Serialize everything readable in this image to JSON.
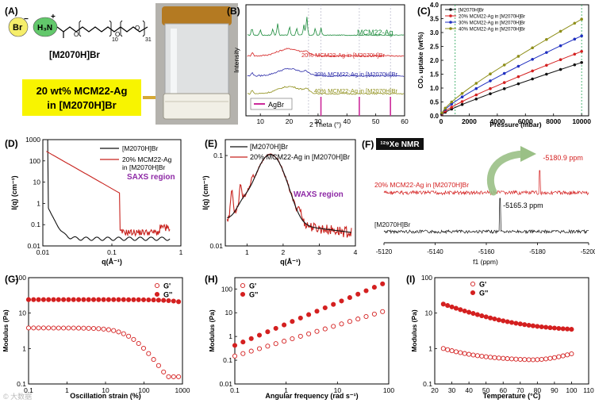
{
  "panels": {
    "A": {
      "letter": "(A)",
      "anion": "Br",
      "cation": "H₃N",
      "sub1": "10",
      "sub2": "31",
      "compound": "[M2070H]Br",
      "callout_line1": "20 wt% MCM22-Ag",
      "callout_line2": "in [M2070H]Br",
      "colors": {
        "anion_fill": "#f6ee6a",
        "cation_fill": "#62c86b",
        "callout_fill": "#f8f400",
        "arrow": "#d6a935"
      }
    },
    "B": {
      "letter": "(B)"
    },
    "C": {
      "letter": "(C)"
    },
    "D": {
      "letter": "(D)"
    },
    "E": {
      "letter": "(E)"
    },
    "F": {
      "letter": "(F)"
    },
    "G": {
      "letter": "(G)"
    },
    "H": {
      "letter": "(H)"
    },
    "I": {
      "letter": "(I)"
    }
  },
  "watermark": "© 大数据",
  "chart_data": [
    {
      "id": "B",
      "type": "line",
      "title": "",
      "xlabel": "2 Theta (°)",
      "ylabel": "Intensity",
      "xlim": [
        5,
        60
      ],
      "xticks": [
        10,
        20,
        30,
        40,
        50,
        60
      ],
      "series": [
        {
          "name": "MCM22-Ag",
          "color": "#1a8a3a",
          "offset": 3.4
        },
        {
          "name": "20% MCM22-Ag in [M2070H]Br",
          "color": "#d42020",
          "offset": 2.45
        },
        {
          "name": "30% MCM22-Ag in [M2070H]Br",
          "color": "#2a2aa8",
          "offset": 1.55
        },
        {
          "name": "40% MCM22-Ag in [M2070H]Br",
          "color": "#8e8e18",
          "offset": 0.75
        }
      ],
      "reference": {
        "name": "AgBr",
        "color": "#cc2a9a",
        "peaks": [
          31,
          44.3,
          55.1
        ],
        "guides": [
          26.7,
          31,
          44.3,
          55.1
        ]
      }
    },
    {
      "id": "C",
      "type": "line",
      "xlabel": "Pressure (mbar)",
      "ylabel": "CO₂ uptake (wt%)",
      "xlim": [
        0,
        10500
      ],
      "ylim": [
        0,
        4.0
      ],
      "xticks": [
        0,
        2000,
        4000,
        6000,
        8000,
        10000
      ],
      "yticks": [
        0,
        0.5,
        1.0,
        1.5,
        2.0,
        2.5,
        3.0,
        3.5,
        4.0
      ],
      "guides": [
        1000,
        10000
      ],
      "series": [
        {
          "name": "[M2070H]Br",
          "color": "#111111",
          "end": 1.92,
          "k": 0.16
        },
        {
          "name": "20% MCM22-Ag in [M2070H]Br",
          "color": "#d42020",
          "end": 2.32,
          "k": 0.22
        },
        {
          "name": "30% MCM22-Ag in [M2070H]Br",
          "color": "#1f2fc0",
          "end": 2.88,
          "k": 0.33
        },
        {
          "name": "40% MCM22-Ag in [M2070H]Br",
          "color": "#8e8e18",
          "end": 3.48,
          "k": 0.38
        }
      ]
    },
    {
      "id": "D",
      "type": "line",
      "xlabel": "q(Å⁻¹)",
      "ylabel": "I(q) (cm⁻¹)",
      "xlim": [
        0.01,
        1
      ],
      "ylim": [
        0.01,
        1000
      ],
      "xscale": "log",
      "yscale": "log",
      "xticks": [
        0.01,
        0.1,
        1
      ],
      "yticks": [
        0.01,
        0.1,
        1,
        10,
        100,
        1000
      ],
      "annotation": "SAXS region",
      "series": [
        {
          "name": "[M2070H]Br",
          "color": "#111111"
        },
        {
          "name": "20% MCM22-Ag in [M2070H]Br",
          "color": "#c8231e"
        }
      ]
    },
    {
      "id": "E",
      "type": "line",
      "xlabel": "q(Å⁻¹)",
      "ylabel": "I(q) (cm⁻¹)",
      "xlim": [
        0.4,
        4
      ],
      "ylim": [
        0.01,
        0.15
      ],
      "yscale": "log",
      "xticks": [
        1,
        2,
        3,
        4
      ],
      "yticks": [
        0.01,
        0.1
      ],
      "annotation": "WAXS region",
      "series": [
        {
          "name": "[M2070H]Br",
          "color": "#111111"
        },
        {
          "name": "20% MCM22-Ag in [M2070H]Br",
          "color": "#c8231e"
        }
      ]
    },
    {
      "id": "F",
      "type": "line",
      "title": "¹²⁹Xe NMR",
      "xlabel": "f1 (ppm)",
      "xlim": [
        -5120,
        -5200
      ],
      "xticks": [
        -5120,
        -5140,
        -5160,
        -5180,
        -5200
      ],
      "peaks_ppm": [
        "-5165.3 ppm",
        "-5180.9 ppm"
      ],
      "peak_values": [
        -5165.3,
        -5180.9
      ],
      "series": [
        {
          "name": "20% MCM22-Ag in [M2070H]Br",
          "color": "#d42020"
        },
        {
          "name": "[M2070H]Br",
          "color": "#111111"
        }
      ]
    },
    {
      "id": "G",
      "type": "scatter",
      "xlabel": "Oscillation strain (%)",
      "ylabel": "Modulus (Pa)",
      "xlim": [
        0.1,
        1000
      ],
      "ylim": [
        0.1,
        100
      ],
      "xscale": "log",
      "yscale": "log",
      "xticks": [
        0.1,
        1,
        10,
        100,
        1000
      ],
      "yticks": [
        0.1,
        1,
        10,
        100
      ],
      "series": [
        {
          "name": "G'",
          "color": "#d42020",
          "filled": false
        },
        {
          "name": "G''",
          "color": "#d42020",
          "filled": true
        }
      ]
    },
    {
      "id": "H",
      "type": "scatter",
      "xlabel": "Angular frequency (rad s⁻¹)",
      "ylabel": "Modulus (Pa)",
      "xlim": [
        0.1,
        100
      ],
      "ylim": [
        0.01,
        300
      ],
      "xscale": "log",
      "yscale": "log",
      "xticks": [
        0.1,
        1,
        10,
        100
      ],
      "yticks": [
        0.01,
        0.1,
        1,
        10,
        100
      ],
      "series": [
        {
          "name": "G'",
          "color": "#d42020",
          "filled": false
        },
        {
          "name": "G''",
          "color": "#d42020",
          "filled": true
        }
      ]
    },
    {
      "id": "I",
      "type": "scatter",
      "xlabel": "Temperature (°C)",
      "ylabel": "Modulus (Pa)",
      "xlim": [
        20,
        110
      ],
      "ylim": [
        0.1,
        100
      ],
      "yscale": "log",
      "xticks": [
        20,
        30,
        40,
        50,
        60,
        70,
        80,
        90,
        100,
        110
      ],
      "yticks": [
        0.1,
        1,
        10,
        100
      ],
      "series": [
        {
          "name": "G'",
          "color": "#d42020",
          "filled": false
        },
        {
          "name": "G''",
          "color": "#d42020",
          "filled": true
        }
      ]
    }
  ]
}
